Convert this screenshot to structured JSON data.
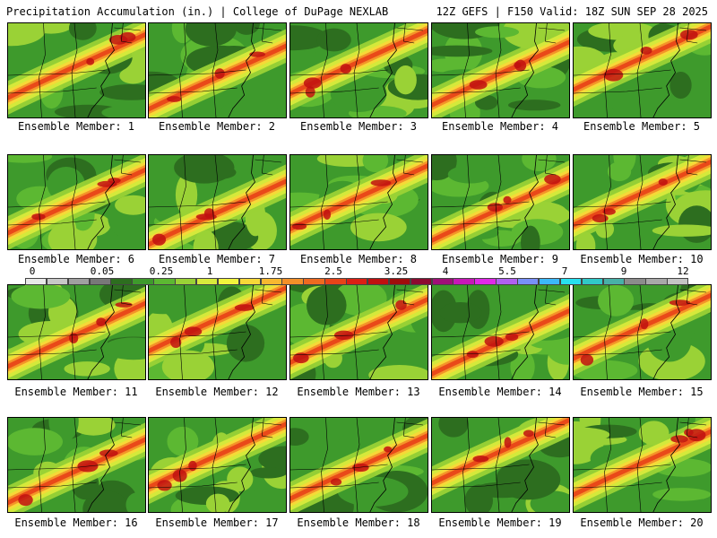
{
  "header": {
    "left_title": "Precipitation Accumulation (in.) | College of DuPage NEXLAB",
    "right_title": "12Z GEFS | F150 Valid: 18Z SUN SEP 28 2025"
  },
  "members": [
    {
      "label": "Ensemble Member: 1"
    },
    {
      "label": "Ensemble Member: 2"
    },
    {
      "label": "Ensemble Member: 3"
    },
    {
      "label": "Ensemble Member: 4"
    },
    {
      "label": "Ensemble Member: 5"
    },
    {
      "label": "Ensemble Member: 6"
    },
    {
      "label": "Ensemble Member: 7"
    },
    {
      "label": "Ensemble Member: 8"
    },
    {
      "label": "Ensemble Member: 9"
    },
    {
      "label": "Ensemble Member: 10"
    },
    {
      "label": "Ensemble Member: 11"
    },
    {
      "label": "Ensemble Member: 12"
    },
    {
      "label": "Ensemble Member: 13"
    },
    {
      "label": "Ensemble Member: 14"
    },
    {
      "label": "Ensemble Member: 15"
    },
    {
      "label": "Ensemble Member: 16"
    },
    {
      "label": "Ensemble Member: 17"
    },
    {
      "label": "Ensemble Member: 18"
    },
    {
      "label": "Ensemble Member: 19"
    },
    {
      "label": "Ensemble Member: 20"
    }
  ],
  "colorbar": {
    "tick_labels": [
      "0",
      "0.05",
      "0.25",
      "1",
      "1.75",
      "2.5",
      "3.25",
      "4",
      "5.5",
      "7",
      "9",
      "12"
    ],
    "colors": [
      "#e8e8e8",
      "#c8c8c8",
      "#a0a0a0",
      "#787878",
      "#2d6e1f",
      "#3e9a2c",
      "#5cb832",
      "#9ad236",
      "#d8ea3c",
      "#f2f43c",
      "#f8d838",
      "#f8b830",
      "#f39028",
      "#ee6a20",
      "#e84418",
      "#dc2014",
      "#c01010",
      "#a00c0c",
      "#8c0a30",
      "#a01078",
      "#c818b8",
      "#e028e8",
      "#b060f0",
      "#7890f8",
      "#3cb8f8",
      "#28e0f0",
      "#30c8c8",
      "#48b0a8",
      "#8c8c8c",
      "#a8a8a8",
      "#c4c4c4"
    ]
  }
}
